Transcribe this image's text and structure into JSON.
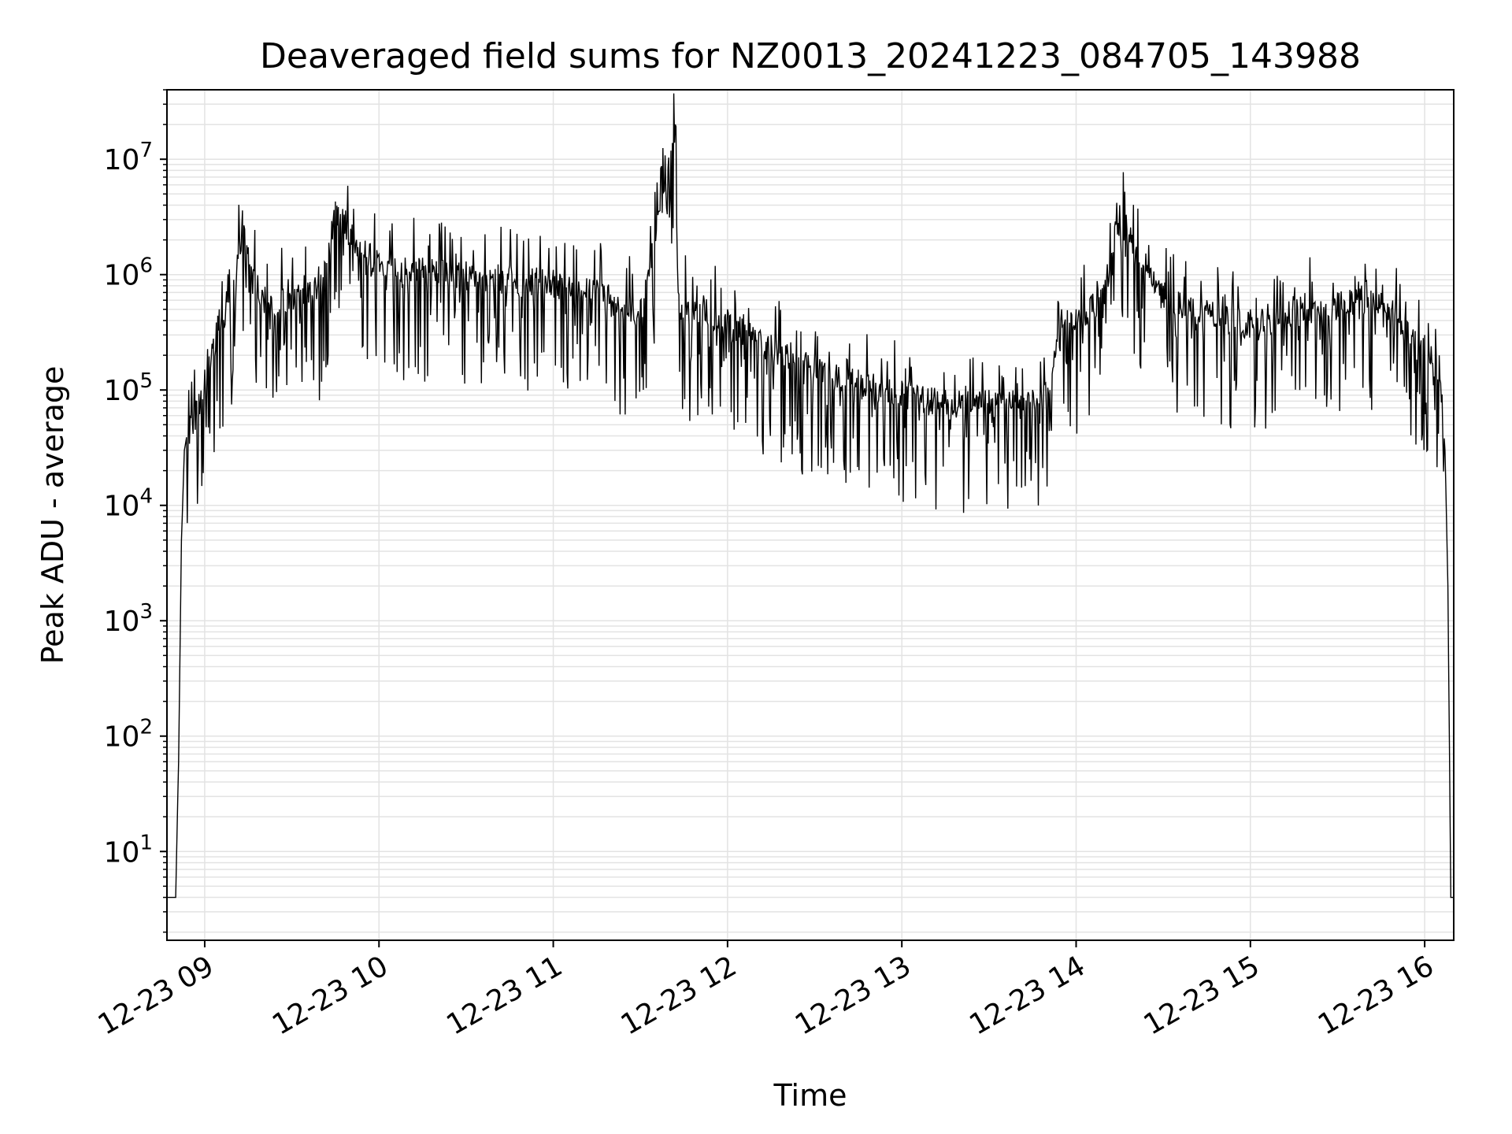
{
  "chart_data": {
    "type": "line",
    "title": "Deaveraged field sums for NZ0013_20241223_084705_143988",
    "xlabel": "Time",
    "ylabel": "Peak ADU - average",
    "yscale": "log",
    "grid": true,
    "xlim": [
      "12-23 08:47",
      "12-23 16:10"
    ],
    "ylim": [
      1.7,
      40000000
    ],
    "xticks": [
      "12-23 09",
      "12-23 10",
      "12-23 11",
      "12-23 12",
      "12-23 13",
      "12-23 14",
      "12-23 15",
      "12-23 16"
    ],
    "yticks": [
      {
        "base": "10",
        "exp": "1",
        "value": 10
      },
      {
        "base": "10",
        "exp": "2",
        "value": 100
      },
      {
        "base": "10",
        "exp": "3",
        "value": 1000
      },
      {
        "base": "10",
        "exp": "4",
        "value": 10000
      },
      {
        "base": "10",
        "exp": "5",
        "value": 100000
      },
      {
        "base": "10",
        "exp": "6",
        "value": 1000000
      },
      {
        "base": "10",
        "exp": "7",
        "value": 10000000
      }
    ],
    "line_color": "#000000",
    "series": [
      {
        "x": [
          "12-23 08:47",
          "12-23 08:50",
          "12-23 08:51",
          "12-23 08:52",
          "12-23 08:53",
          "12-23 08:55",
          "12-23 08:57",
          "12-23 09:00",
          "12-23 09:05",
          "12-23 09:10",
          "12-23 09:13",
          "12-23 09:20",
          "12-23 09:30",
          "12-23 09:40",
          "12-23 09:45",
          "12-23 10:00",
          "12-23 10:15",
          "12-23 10:30",
          "12-23 10:45",
          "12-23 11:00",
          "12-23 11:15",
          "12-23 11:30",
          "12-23 11:42",
          "12-23 11:43",
          "12-23 12:00",
          "12-23 12:15",
          "12-23 12:30",
          "12-23 12:45",
          "12-23 13:00",
          "12-23 13:15",
          "12-23 13:30",
          "12-23 13:45",
          "12-23 13:48",
          "12-23 13:55",
          "12-23 14:00",
          "12-23 14:10",
          "12-23 14:15",
          "12-23 14:30",
          "12-23 14:45",
          "12-23 15:00",
          "12-23 15:15",
          "12-23 15:30",
          "12-23 15:40",
          "12-23 15:50",
          "12-23 16:00",
          "12-23 16:05",
          "12-23 16:07",
          "12-23 16:08",
          "12-23 16:09",
          "12-23 16:10"
        ],
        "y": [
          4,
          4,
          60,
          5000,
          30000,
          60000,
          80000,
          150000,
          500000,
          900000,
          3600000,
          700000,
          800000,
          1000000,
          4300000,
          1500000,
          1400000,
          1300000,
          1200000,
          1100000,
          900000,
          600000,
          20000000,
          700000,
          500000,
          300000,
          200000,
          150000,
          120000,
          100000,
          100000,
          100000,
          100000,
          500000,
          500000,
          900000,
          4000000,
          800000,
          600000,
          500000,
          600000,
          700000,
          900000,
          600000,
          300000,
          200000,
          30000,
          2000,
          4,
          4
        ]
      }
    ]
  }
}
